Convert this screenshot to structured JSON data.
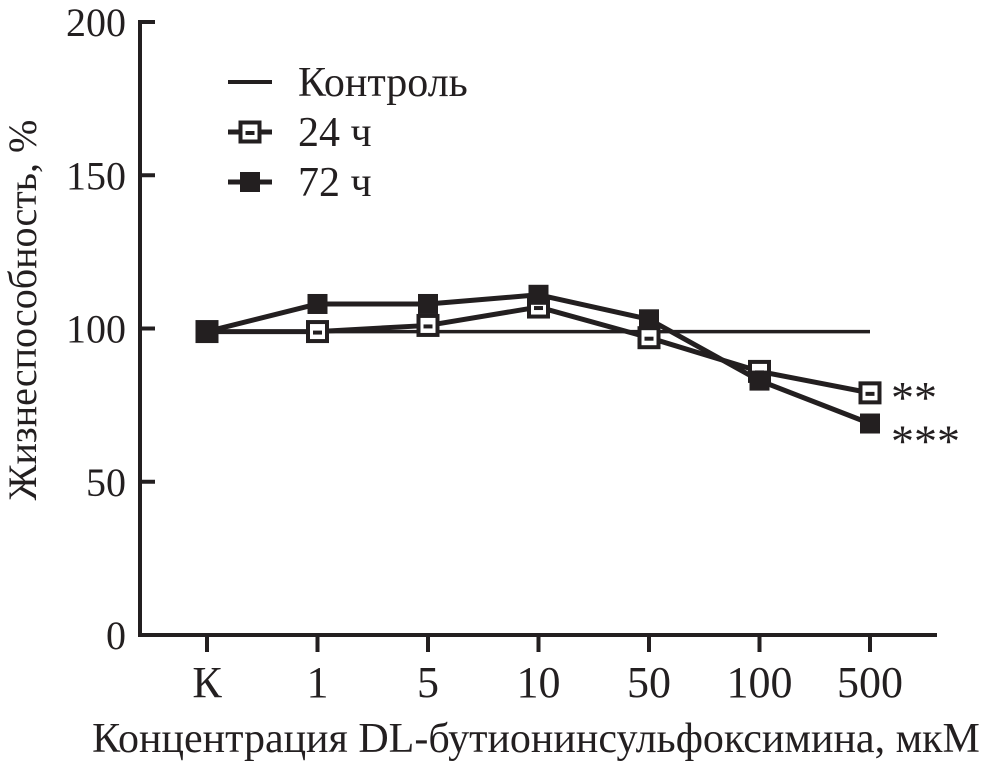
{
  "figure": {
    "background": "#ffffff",
    "ink_color": "#231f20"
  },
  "chart_data": {
    "type": "line",
    "title": "",
    "xlabel": "Концентрация DL-бутионинсульфоксимина, мкМ",
    "ylabel": "Жизнеспособность, %",
    "categories": [
      "К",
      "1",
      "5",
      "10",
      "50",
      "100",
      "500"
    ],
    "x_scale": "categorical",
    "y_ticks": [
      0,
      50,
      100,
      150,
      200
    ],
    "ylim": [
      0,
      200
    ],
    "grid": false,
    "legend_position": "top-left-inside",
    "legend_entries": [
      "Контроль",
      "24 ч",
      "72 ч"
    ],
    "series": [
      {
        "name": "Контроль",
        "marker": "none",
        "values": [
          99,
          99,
          99,
          99,
          99,
          99,
          99
        ]
      },
      {
        "name": "24 ч",
        "marker": "open-square",
        "values": [
          99,
          99,
          101,
          107,
          97,
          86,
          79
        ]
      },
      {
        "name": "72 ч",
        "marker": "filled-square",
        "values": [
          99,
          108,
          108,
          111,
          103,
          83,
          69
        ]
      }
    ],
    "annotations": [
      {
        "text": "**",
        "attach_series": "24 ч",
        "attach_category": "500"
      },
      {
        "text": "***",
        "attach_series": "72 ч",
        "attach_category": "500"
      }
    ]
  }
}
